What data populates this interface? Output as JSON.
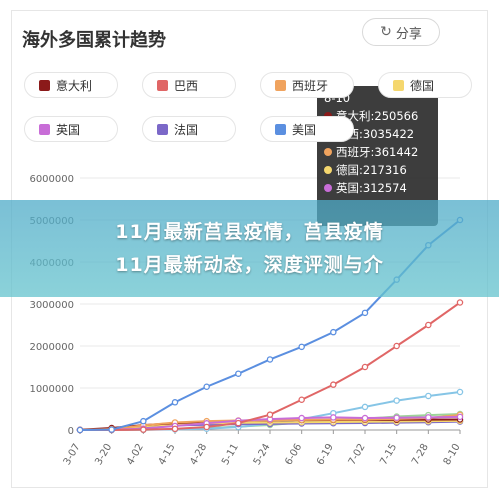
{
  "title": "海外多国累计趋势",
  "share_label": "分享",
  "share_icon": "share-icon",
  "legend_items": [
    {
      "label": "意大利",
      "color": "#8b1a1a"
    },
    {
      "label": "巴西",
      "color": "#e06666"
    },
    {
      "label": "西班牙",
      "color": "#f0a35e"
    },
    {
      "label": "德国",
      "color": "#f5d76e"
    },
    {
      "label": "英国",
      "color": "#c86dd7"
    },
    {
      "label": "法国",
      "color": "#7b68c8"
    },
    {
      "label": "美国",
      "color": "#5b8fe0"
    }
  ],
  "tooltip": {
    "title": "8-10",
    "rows": [
      {
        "text": "意大利:250566",
        "color": "#8b1a1a"
      },
      {
        "text": "巴西:3035422",
        "color": "#e06666"
      },
      {
        "text": "西班牙:361442",
        "color": "#f0a35e"
      },
      {
        "text": "德国:217316",
        "color": "#f5d76e"
      },
      {
        "text": "英国:312574",
        "color": "#c86dd7"
      }
    ]
  },
  "banner": {
    "line1": "11月最新莒县疫情，莒县疫情",
    "line2": "11月最新动态，深度评测与介"
  },
  "chart_data": {
    "type": "line",
    "title": "海外多国累计趋势",
    "x": [
      "3-07",
      "3-20",
      "4-02",
      "4-15",
      "4-28",
      "5-11",
      "5-24",
      "6-06",
      "6-19",
      "7-02",
      "7-15",
      "7-28",
      "8-10"
    ],
    "y_ticks": [
      "0",
      "1000000",
      "2000000",
      "3000000",
      "4000000",
      "5000000",
      "6000000"
    ],
    "ylim": [
      0,
      6000000
    ],
    "grid": true,
    "series": [
      {
        "name": "美国",
        "color": "#5b8fe0",
        "values": [
          0,
          10000,
          210000,
          660000,
          1030000,
          1340000,
          1680000,
          1980000,
          2330000,
          2790000,
          3580000,
          4400000,
          5000000
        ]
      },
      {
        "name": "巴西",
        "color": "#e06666",
        "values": [
          0,
          0,
          8000,
          28000,
          72000,
          165000,
          365000,
          720000,
          1080000,
          1500000,
          2000000,
          2500000,
          3035422
        ]
      },
      {
        "name": "英国",
        "color": "#c86dd7",
        "values": [
          0,
          4000,
          34000,
          95000,
          160000,
          220000,
          260000,
          285000,
          300000,
          285000,
          292000,
          302000,
          312574
        ]
      },
      {
        "name": "西班牙",
        "color": "#f0a35e",
        "values": [
          0,
          20000,
          110000,
          180000,
          210000,
          225000,
          235000,
          241000,
          246000,
          251000,
          265000,
          285000,
          361442
        ]
      },
      {
        "name": "意大利",
        "color": "#8b1a1a",
        "values": [
          5000,
          47000,
          115000,
          165000,
          200000,
          220000,
          230000,
          235000,
          238000,
          241000,
          243000,
          247000,
          250566
        ]
      },
      {
        "name": "德国",
        "color": "#f5d76e",
        "values": [
          0,
          15000,
          90000,
          135000,
          160000,
          172000,
          180000,
          186000,
          191000,
          197000,
          202000,
          210000,
          217316
        ]
      },
      {
        "name": "法国",
        "color": "#7b68c8",
        "values": [
          0,
          12000,
          65000,
          110000,
          125000,
          140000,
          145000,
          156000,
          162000,
          166000,
          176000,
          185000,
          200000
        ]
      },
      {
        "name": "",
        "color": "#86c5e6",
        "values": [
          0,
          0,
          5000,
          15000,
          30000,
          70000,
          150000,
          260000,
          400000,
          550000,
          700000,
          810000,
          905000
        ]
      },
      {
        "name": "",
        "color": "#9dd39a",
        "values": [
          0,
          0,
          6000,
          20000,
          45000,
          80000,
          120000,
          180000,
          230000,
          270000,
          320000,
          355000,
          380000
        ]
      }
    ]
  }
}
